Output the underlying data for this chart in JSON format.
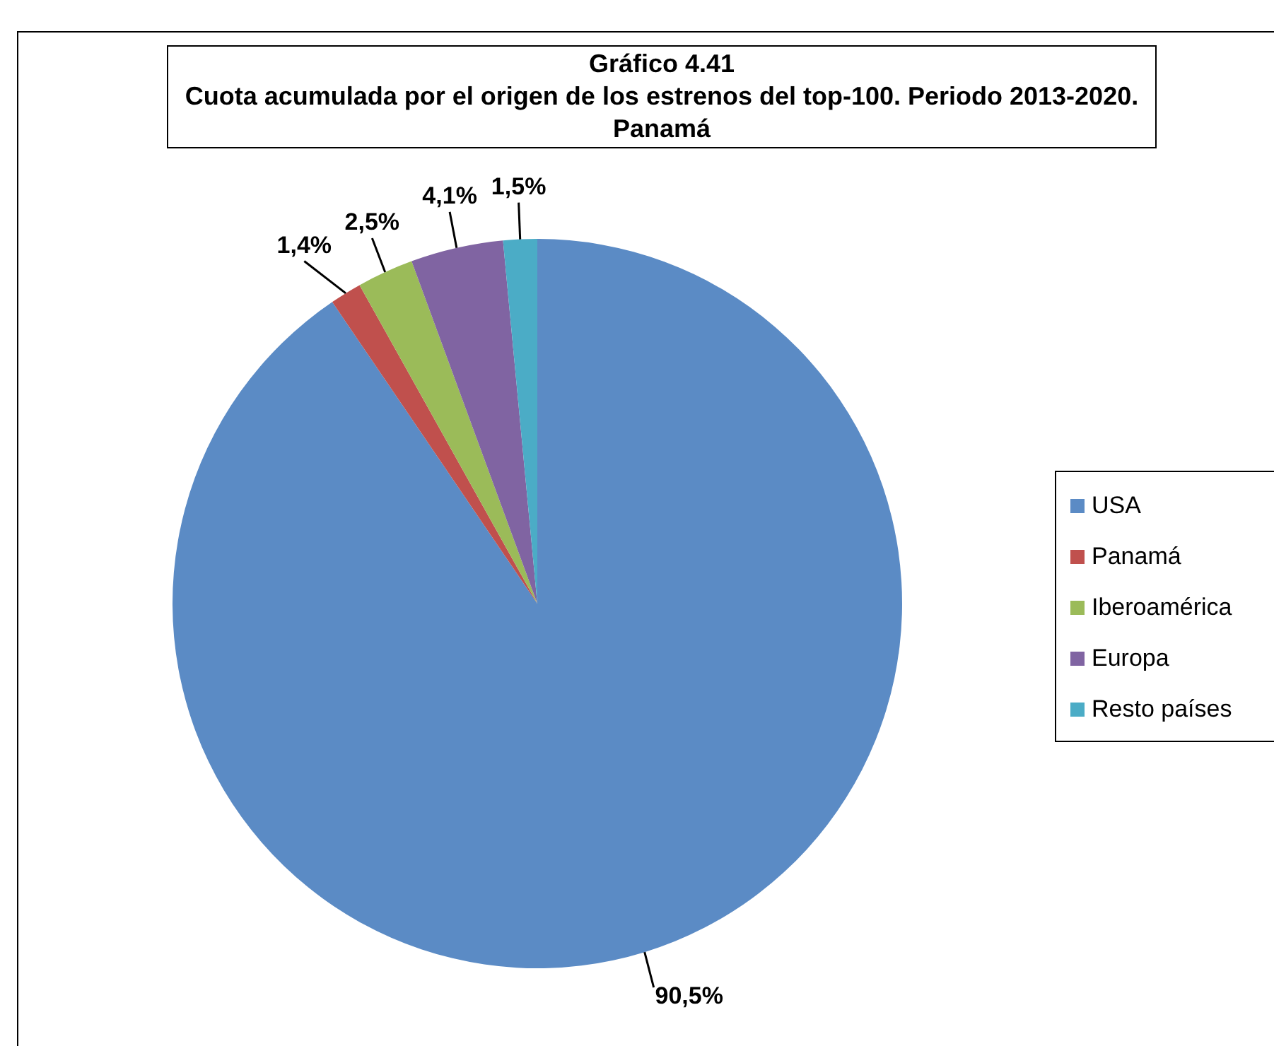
{
  "chart_data": {
    "type": "pie",
    "title": "Gráfico 4.41",
    "subtitle": "Cuota acumulada por el origen de los estrenos del top-100. Periodo 2013-2020. Panamá",
    "categories": [
      "USA",
      "Panamá",
      "Iberoamérica",
      "Europa",
      "Resto países"
    ],
    "values": [
      90.5,
      1.4,
      2.5,
      4.1,
      1.5
    ],
    "colors": [
      "#5b8bc5",
      "#c0504d",
      "#9bbb59",
      "#8064a2",
      "#4bacc6"
    ],
    "value_labels": [
      "90,5%",
      "1,4%",
      "2,5%",
      "4,1%",
      "1,5%"
    ],
    "legend": "right"
  }
}
